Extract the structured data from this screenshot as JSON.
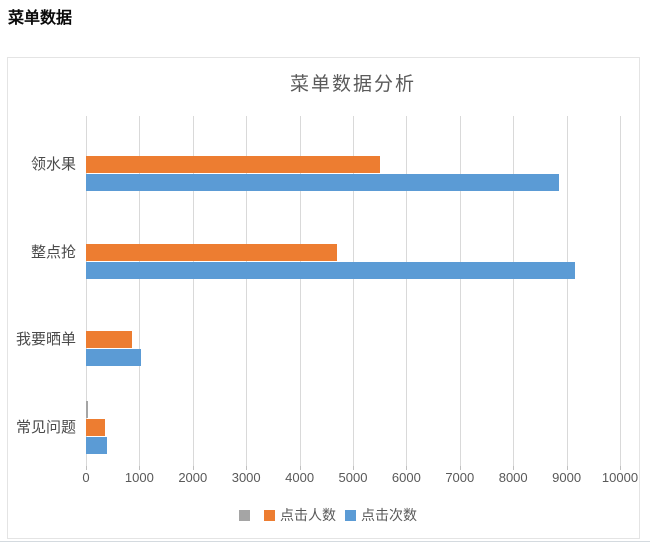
{
  "page": {
    "title": "菜单数据"
  },
  "chart_data": {
    "type": "bar",
    "orientation": "horizontal",
    "title": "菜单数据分析",
    "categories": [
      "领水果",
      "整点抢",
      "我要晒单",
      "常见问题"
    ],
    "series": [
      {
        "name": "",
        "color": "#a5a5a5",
        "values": [
          0,
          0,
          0,
          30
        ]
      },
      {
        "name": "点击人数",
        "color": "#ed7d31",
        "values": [
          5500,
          4700,
          870,
          350
        ]
      },
      {
        "name": "点击次数",
        "color": "#5b9bd5",
        "values": [
          8850,
          9150,
          1030,
          400
        ]
      }
    ],
    "x_axis": {
      "min": 0,
      "max": 10000,
      "tick_interval": 1000,
      "tick_labels": [
        "0",
        "1000",
        "2000",
        "3000",
        "4000",
        "5000",
        "6000",
        "7000",
        "8000",
        "9000",
        "10000"
      ]
    },
    "grid": true,
    "legend_position": "bottom",
    "colors": {
      "gridline": "#d9d9d9",
      "axis_text": "#595959",
      "title_text": "#5a5a5a"
    }
  }
}
